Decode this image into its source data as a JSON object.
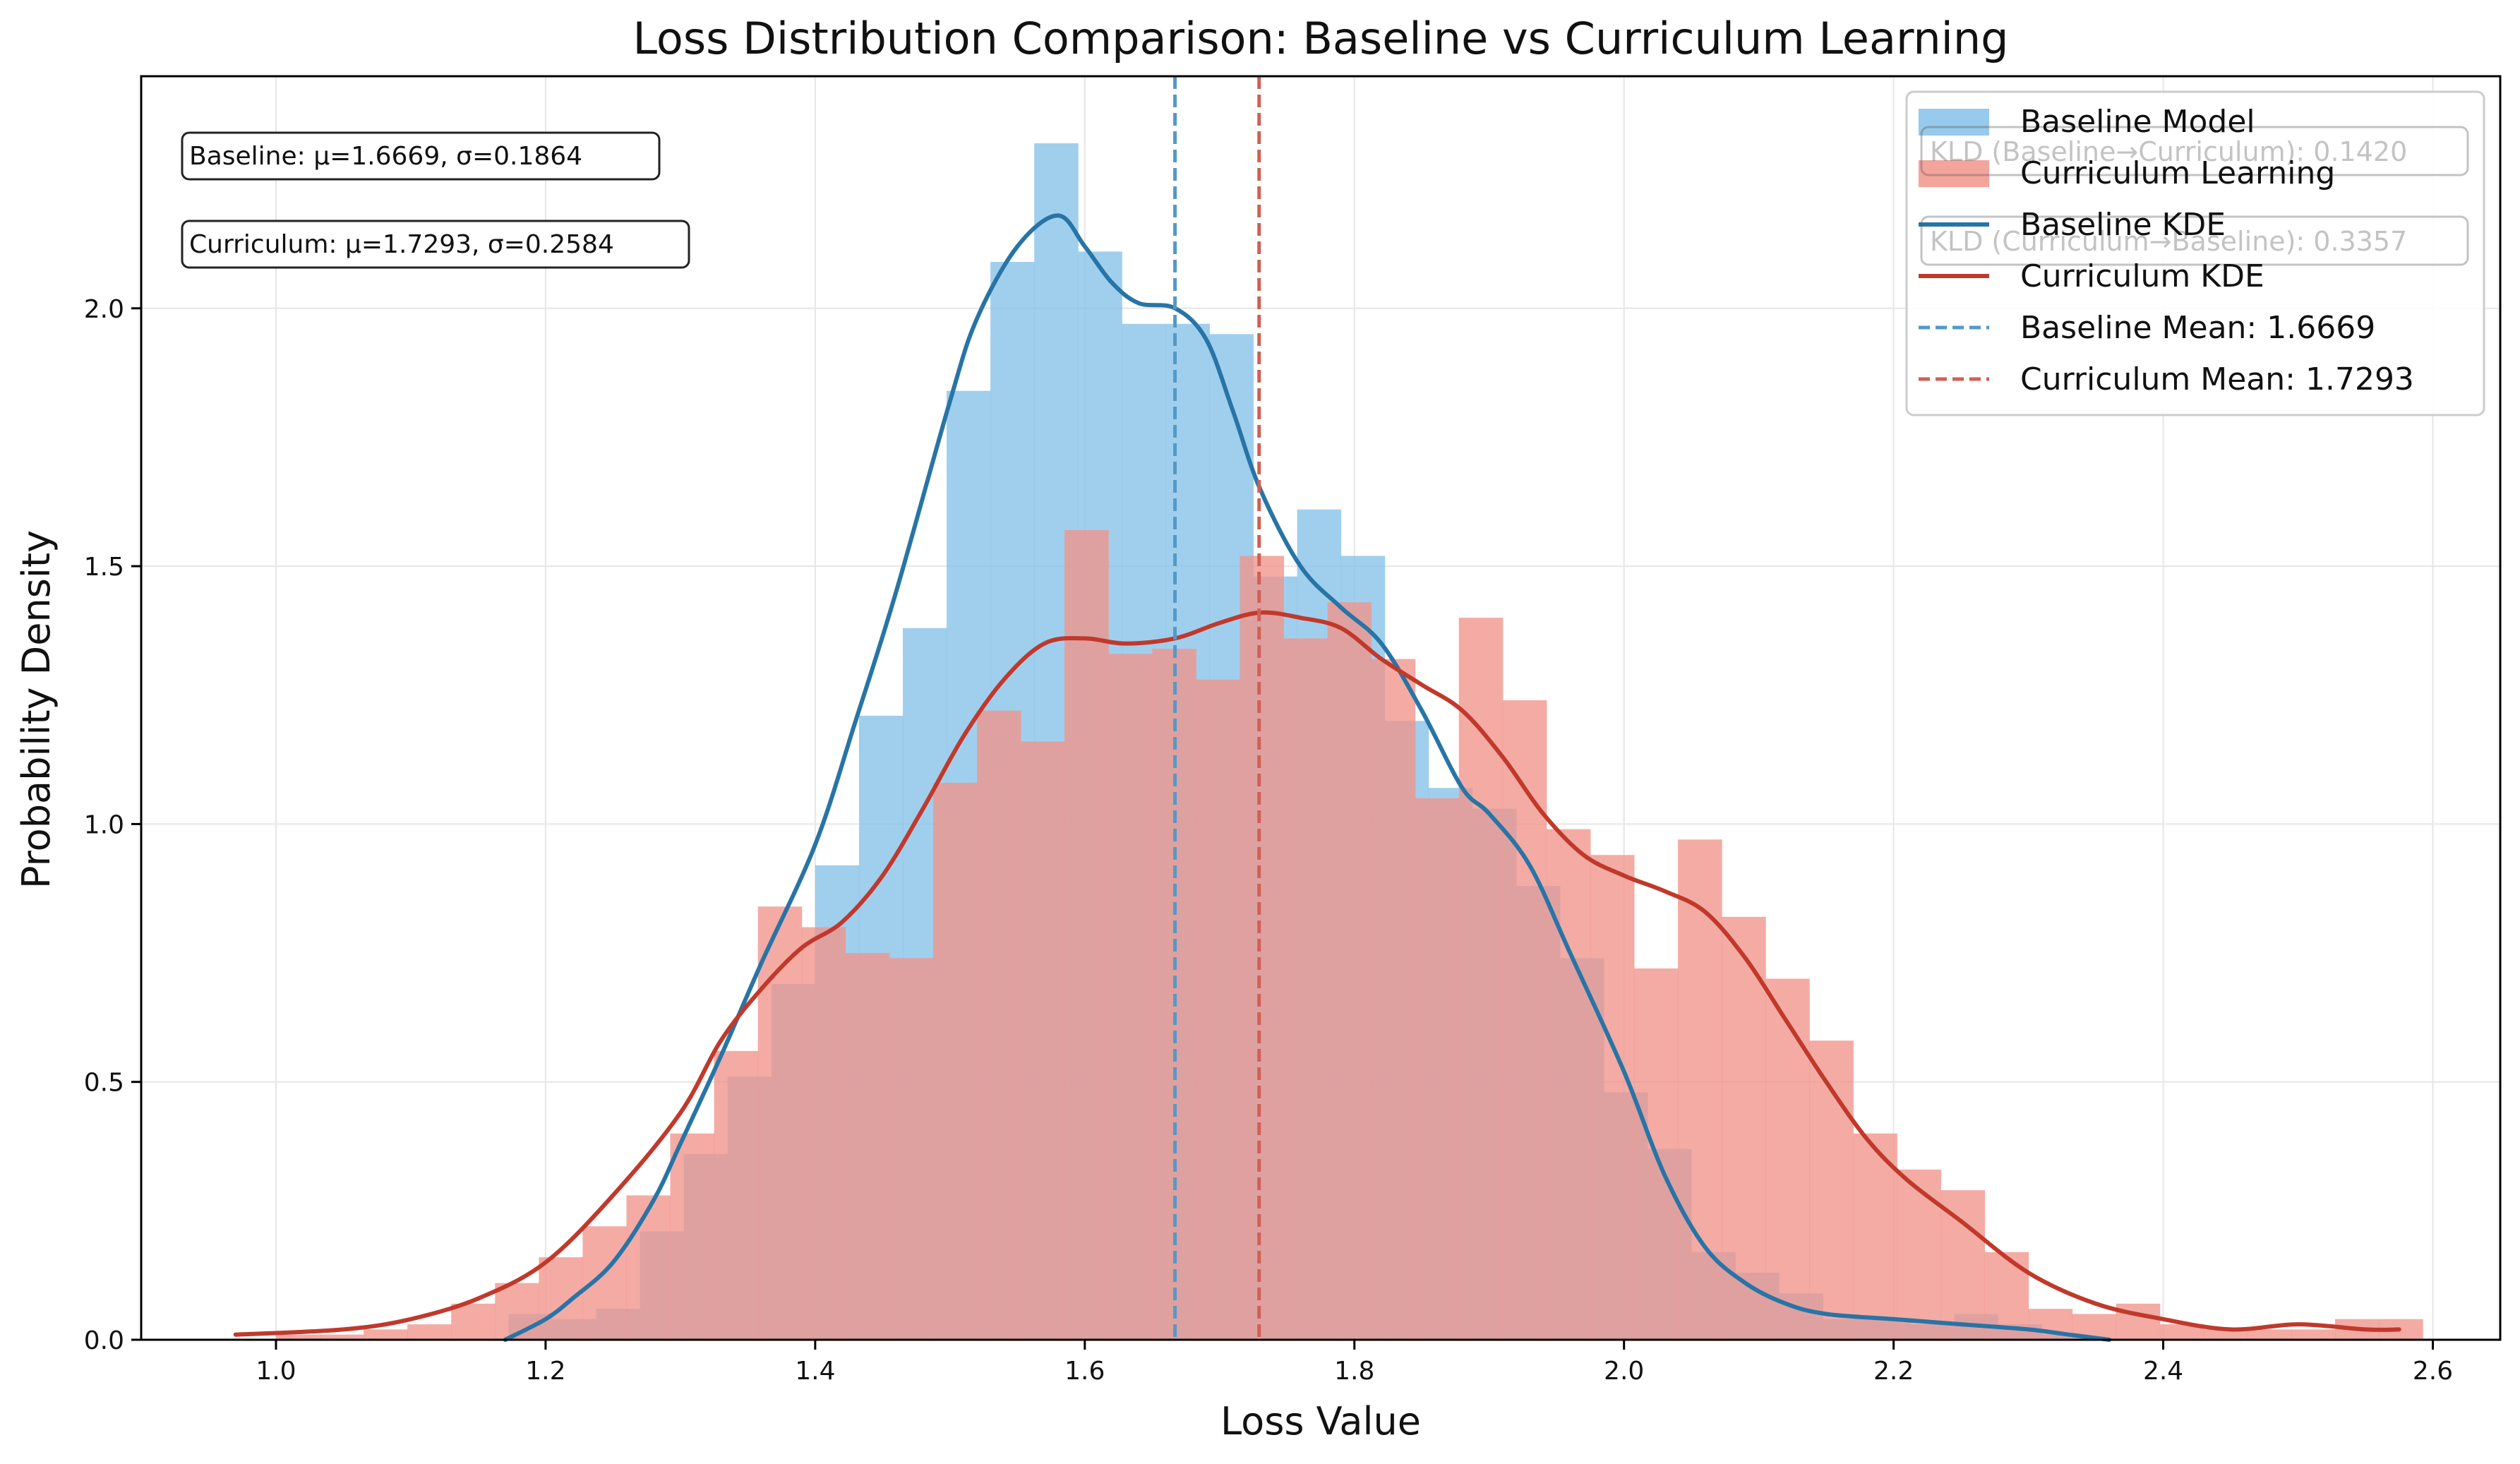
{
  "chart_data": {
    "type": "bar",
    "title": "Loss Distribution Comparison: Baseline vs Curriculum Learning",
    "xlabel": "Loss Value",
    "ylabel": "Probability Density",
    "xlim": [
      0.9,
      2.65
    ],
    "ylim": [
      0,
      2.45
    ],
    "xticks": [
      {
        "value": 1.0,
        "label": "1.0"
      },
      {
        "value": 1.2,
        "label": "1.2"
      },
      {
        "value": 1.4,
        "label": "1.4"
      },
      {
        "value": 1.6,
        "label": "1.6"
      },
      {
        "value": 1.8,
        "label": "1.8"
      },
      {
        "value": 2.0,
        "label": "2.0"
      },
      {
        "value": 2.2,
        "label": "2.2"
      },
      {
        "value": 2.4,
        "label": "2.4"
      },
      {
        "value": 2.6,
        "label": "2.6"
      }
    ],
    "yticks": [
      {
        "value": 0.0,
        "label": "0.0"
      },
      {
        "value": 0.5,
        "label": "0.5"
      },
      {
        "value": 1.0,
        "label": "1.0"
      },
      {
        "value": 1.5,
        "label": "1.5"
      },
      {
        "value": 2.0,
        "label": "2.0"
      }
    ],
    "grid": true,
    "legend_position": "top-right",
    "colors": {
      "baseline_hist": "#85c1e9",
      "curriculum_hist": "#f1948a",
      "baseline_kde": "#2874a6",
      "curriculum_kde": "#c0392b",
      "baseline_mean": "#5499c7",
      "curriculum_mean": "#cd6155"
    },
    "histograms": [
      {
        "name": "Baseline Model",
        "color": "#85c1e9",
        "bin_edges": [
          1.1725,
          1.205,
          1.2375,
          1.27,
          1.3025,
          1.335,
          1.3675,
          1.4,
          1.4325,
          1.465,
          1.4975,
          1.53,
          1.5625,
          1.595,
          1.6275,
          1.66,
          1.6925,
          1.725,
          1.7575,
          1.79,
          1.8225,
          1.855,
          1.8875,
          1.92,
          1.9525,
          1.985,
          2.0175,
          2.05,
          2.0825,
          2.115,
          2.1475,
          2.18,
          2.2125,
          2.245,
          2.2775,
          2.31,
          2.3425
        ],
        "densities": [
          0.05,
          0.04,
          0.06,
          0.21,
          0.36,
          0.51,
          0.69,
          0.92,
          1.21,
          1.38,
          1.84,
          2.09,
          2.32,
          2.11,
          1.97,
          1.97,
          1.95,
          1.48,
          1.61,
          1.52,
          1.2,
          1.07,
          1.03,
          0.88,
          0.74,
          0.48,
          0.37,
          0.17,
          0.13,
          0.09,
          0.04,
          0.04,
          0.03,
          0.05,
          0.03,
          0.01
        ]
      },
      {
        "name": "Curriculum Learning",
        "color": "#f1948a",
        "bin_edges": [
          1.0,
          1.0325,
          1.065,
          1.0975,
          1.13,
          1.1625,
          1.195,
          1.2275,
          1.26,
          1.2925,
          1.325,
          1.3575,
          1.39,
          1.4225,
          1.455,
          1.4875,
          1.52,
          1.5525,
          1.585,
          1.6175,
          1.65,
          1.6825,
          1.715,
          1.7475,
          1.78,
          1.8125,
          1.845,
          1.8775,
          1.91,
          1.9425,
          1.975,
          2.0075,
          2.04,
          2.0725,
          2.105,
          2.1375,
          2.17,
          2.2025,
          2.235,
          2.2675,
          2.3,
          2.3325,
          2.365,
          2.3975,
          2.43,
          2.4625,
          2.495,
          2.5275,
          2.56,
          2.5925
        ],
        "densities": [
          0.01,
          0.01,
          0.02,
          0.03,
          0.07,
          0.11,
          0.16,
          0.22,
          0.28,
          0.4,
          0.56,
          0.84,
          0.8,
          0.75,
          0.74,
          1.08,
          1.22,
          1.16,
          1.57,
          1.33,
          1.34,
          1.28,
          1.52,
          1.36,
          1.43,
          1.32,
          1.05,
          1.4,
          1.24,
          0.99,
          0.94,
          0.72,
          0.97,
          0.82,
          0.7,
          0.58,
          0.4,
          0.33,
          0.29,
          0.17,
          0.06,
          0.05,
          0.07,
          0.03,
          0.02,
          0.02,
          0.02,
          0.04,
          0.04
        ]
      }
    ],
    "series": [
      {
        "name": "Baseline KDE",
        "color": "#2874a6",
        "x": [
          1.17,
          1.2,
          1.22,
          1.25,
          1.28,
          1.3,
          1.33,
          1.36,
          1.4,
          1.43,
          1.46,
          1.5,
          1.52,
          1.55,
          1.58,
          1.6,
          1.62,
          1.64,
          1.667,
          1.69,
          1.71,
          1.73,
          1.76,
          1.79,
          1.82,
          1.85,
          1.88,
          1.9,
          1.93,
          1.96,
          2.0,
          2.03,
          2.06,
          2.09,
          2.12,
          2.15,
          2.2,
          2.25,
          2.3,
          2.33,
          2.36
        ],
        "y": [
          0.0,
          0.04,
          0.08,
          0.15,
          0.27,
          0.38,
          0.55,
          0.73,
          0.96,
          1.2,
          1.45,
          1.82,
          1.98,
          2.12,
          2.18,
          2.12,
          2.05,
          2.01,
          2.0,
          1.94,
          1.8,
          1.65,
          1.5,
          1.42,
          1.35,
          1.22,
          1.07,
          1.02,
          0.92,
          0.75,
          0.52,
          0.32,
          0.18,
          0.11,
          0.07,
          0.05,
          0.04,
          0.03,
          0.02,
          0.01,
          0.0
        ]
      },
      {
        "name": "Curriculum KDE",
        "color": "#c0392b",
        "x": [
          0.97,
          1.05,
          1.1,
          1.15,
          1.2,
          1.25,
          1.3,
          1.33,
          1.36,
          1.39,
          1.42,
          1.45,
          1.48,
          1.51,
          1.54,
          1.57,
          1.6,
          1.63,
          1.667,
          1.7,
          1.73,
          1.76,
          1.79,
          1.82,
          1.85,
          1.88,
          1.91,
          1.94,
          1.97,
          2.0,
          2.03,
          2.06,
          2.09,
          2.12,
          2.15,
          2.18,
          2.21,
          2.25,
          2.3,
          2.35,
          2.4,
          2.45,
          2.5,
          2.55,
          2.575
        ],
        "y": [
          0.01,
          0.02,
          0.04,
          0.08,
          0.15,
          0.28,
          0.44,
          0.58,
          0.68,
          0.76,
          0.81,
          0.9,
          1.03,
          1.17,
          1.28,
          1.35,
          1.36,
          1.35,
          1.36,
          1.39,
          1.41,
          1.4,
          1.38,
          1.32,
          1.27,
          1.22,
          1.13,
          1.02,
          0.94,
          0.9,
          0.87,
          0.83,
          0.74,
          0.62,
          0.5,
          0.39,
          0.31,
          0.23,
          0.13,
          0.07,
          0.04,
          0.02,
          0.03,
          0.02,
          0.02
        ]
      }
    ],
    "mean_lines": [
      {
        "name": "Baseline Mean: 1.6669",
        "value": 1.6669,
        "color": "#5499c7"
      },
      {
        "name": "Curriculum Mean: 1.7293",
        "value": 1.7293,
        "color": "#cd6155"
      }
    ],
    "stats_boxes": [
      "Baseline: μ=1.6669, σ=0.1864",
      "Curriculum: μ=1.7293, σ=0.2584"
    ],
    "kld_boxes": [
      "KLD (Baseline→Curriculum): 0.1420",
      "KLD (Curriculum→Baseline): 0.3357"
    ],
    "legend_entries": [
      {
        "label": "Baseline Model",
        "kind": "patch",
        "color": "#85c1e9"
      },
      {
        "label": "Curriculum Learning",
        "kind": "patch",
        "color": "#f1948a"
      },
      {
        "label": "Baseline KDE",
        "kind": "line",
        "color": "#2874a6"
      },
      {
        "label": "Curriculum KDE",
        "kind": "line",
        "color": "#c0392b"
      },
      {
        "label": "Baseline Mean: 1.6669",
        "kind": "dashed",
        "color": "#5499c7"
      },
      {
        "label": "Curriculum Mean: 1.7293",
        "kind": "dashed",
        "color": "#cd6155"
      }
    ]
  }
}
